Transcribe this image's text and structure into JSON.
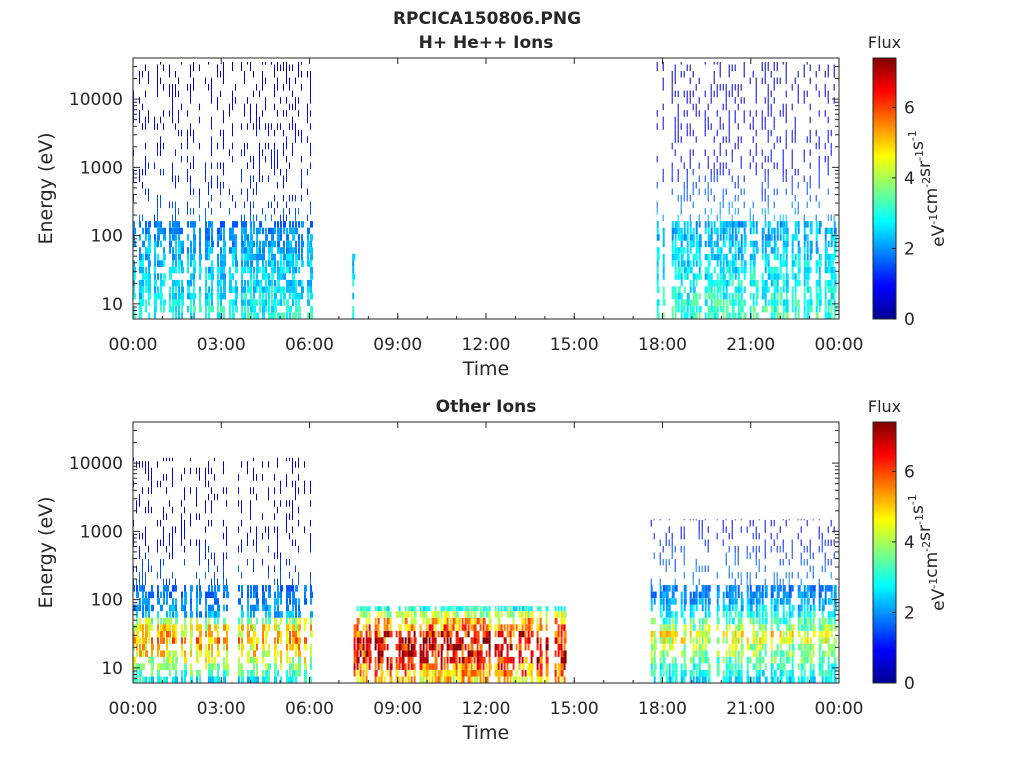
{
  "figure_title": "RPCICA150806.PNG",
  "chart_data": [
    {
      "type": "heatmap",
      "title": "H+ He++ Ions",
      "xlabel": "Time",
      "ylabel": "Energy (eV)",
      "x_ticks": [
        "00:00",
        "03:00",
        "06:00",
        "09:00",
        "12:00",
        "15:00",
        "18:00",
        "21:00",
        "00:00"
      ],
      "x_range_hours": [
        0,
        24
      ],
      "y_ticks": [
        10,
        100,
        1000,
        10000
      ],
      "y_tick_labels": [
        "10",
        "100",
        "1000",
        "10000"
      ],
      "y_scale": "log",
      "y_range": [
        6,
        40000
      ],
      "colorbar": {
        "title": "Flux",
        "unit_base": "eV",
        "unit_parts": [
          [
            "eV",
            "-1"
          ],
          [
            "cm",
            "-2"
          ],
          [
            "sr",
            "-1"
          ],
          [
            "s",
            "-1"
          ]
        ],
        "range": [
          0,
          7.4
        ],
        "ticks": [
          0,
          2,
          4,
          6
        ],
        "colormap": "jet"
      },
      "data_segments": [
        {
          "start_hour": 0.0,
          "end_hour": 6.1,
          "max_energy": 35000,
          "flux_profile": [
            [
              6,
              3.0
            ],
            [
              15,
              2.6
            ],
            [
              40,
              2.4
            ],
            [
              100,
              2.0
            ],
            [
              400,
              1.2
            ],
            [
              3000,
              0.9
            ],
            [
              15000,
              0.6
            ],
            [
              35000,
              0.3
            ]
          ]
        },
        {
          "start_hour": 7.45,
          "end_hour": 7.55,
          "max_energy": 80,
          "flux_profile": [
            [
              6,
              2.8
            ],
            [
              80,
              2.4
            ]
          ]
        },
        {
          "start_hour": 17.6,
          "end_hour": 23.9,
          "max_energy": 35000,
          "flux_profile": [
            [
              6,
              3.2
            ],
            [
              40,
              2.6
            ],
            [
              150,
              2.2
            ],
            [
              1000,
              1.0
            ],
            [
              10000,
              0.7
            ],
            [
              35000,
              0.3
            ]
          ]
        }
      ]
    },
    {
      "type": "heatmap",
      "title": "Other Ions",
      "xlabel": "Time",
      "ylabel": "Energy (eV)",
      "x_ticks": [
        "00:00",
        "03:00",
        "06:00",
        "09:00",
        "12:00",
        "15:00",
        "18:00",
        "21:00",
        "00:00"
      ],
      "x_range_hours": [
        0,
        24
      ],
      "y_ticks": [
        10,
        100,
        1000,
        10000
      ],
      "y_tick_labels": [
        "10",
        "100",
        "1000",
        "10000"
      ],
      "y_scale": "log",
      "y_range": [
        6,
        40000
      ],
      "colorbar": {
        "title": "Flux",
        "unit_base": "eV",
        "unit_parts": [
          [
            "eV",
            "-1"
          ],
          [
            "cm",
            "-2"
          ],
          [
            "sr",
            "-1"
          ],
          [
            "s",
            "-1"
          ]
        ],
        "range": [
          0,
          7.4
        ],
        "ticks": [
          0,
          2,
          4,
          6
        ],
        "colormap": "jet"
      },
      "data_segments": [
        {
          "start_hour": 0.0,
          "end_hour": 6.1,
          "max_energy": 12000,
          "flux_profile": [
            [
              6,
              2.5
            ],
            [
              12,
              4.2
            ],
            [
              25,
              5.2
            ],
            [
              45,
              4.5
            ],
            [
              60,
              2.2
            ],
            [
              120,
              1.8
            ],
            [
              1000,
              0.8
            ],
            [
              12000,
              0.5
            ]
          ]
        },
        {
          "start_hour": 7.5,
          "end_hour": 14.7,
          "max_energy": 80,
          "flux_profile": [
            [
              6,
              4.6
            ],
            [
              12,
              6.2
            ],
            [
              20,
              6.8
            ],
            [
              30,
              6.3
            ],
            [
              50,
              5.0
            ],
            [
              75,
              3.0
            ]
          ]
        },
        {
          "start_hour": 17.6,
          "end_hour": 23.9,
          "max_energy": 1500,
          "flux_profile": [
            [
              6,
              2.6
            ],
            [
              15,
              3.6
            ],
            [
              30,
              4.6
            ],
            [
              45,
              3.4
            ],
            [
              100,
              2.0
            ],
            [
              400,
              1.5
            ],
            [
              1500,
              0.8
            ]
          ]
        }
      ]
    }
  ]
}
